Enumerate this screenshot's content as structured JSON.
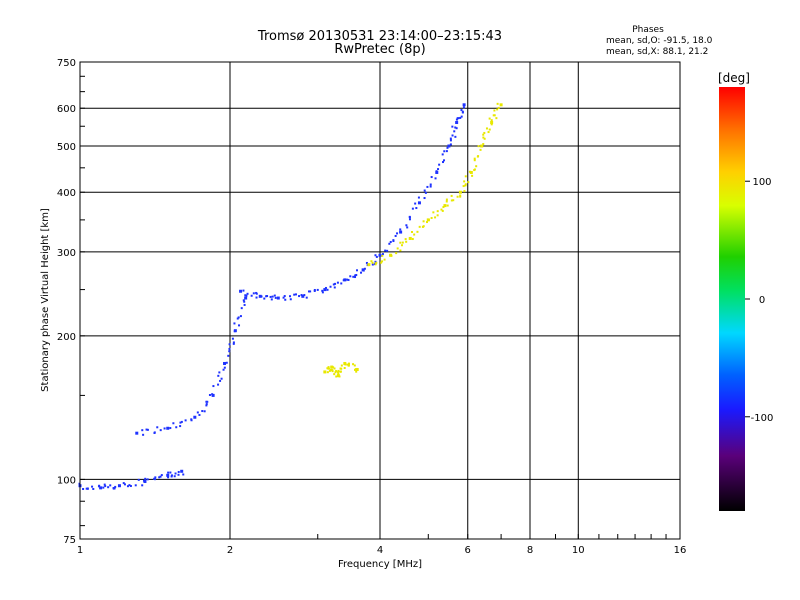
{
  "chart_data": {
    "type": "scatter",
    "title": "Tromsø 20130531 23:14:00–23:15:43",
    "subtitle": "RwPretec (8p)",
    "xlabel": "Frequency [MHz]",
    "ylabel": "Stationary phase Virtual Height [km]",
    "x_scale": "log",
    "y_scale": "log",
    "xlim": [
      1,
      16
    ],
    "ylim": [
      75,
      750
    ],
    "x_ticks": [
      "1",
      "2",
      "4",
      "6",
      "8",
      "10",
      "16"
    ],
    "y_ticks": [
      "75",
      "100",
      "200",
      "300",
      "400",
      "500",
      "600",
      "750"
    ],
    "x_grid": [
      2,
      4,
      6,
      8,
      10
    ],
    "y_grid": [
      100,
      200,
      300,
      400,
      500,
      600
    ],
    "grid": true,
    "stats": {
      "heading": "Phases",
      "o_line": "mean, sd,O: -91.5, 18.0",
      "x_line": "mean, sd,X:  88.1, 21.2"
    },
    "colorbar": {
      "label": "[deg]",
      "range": [
        -180,
        180
      ],
      "ticks": [
        "100",
        "0",
        "-100"
      ],
      "tick_values": [
        100,
        0,
        -100
      ]
    },
    "series": [
      {
        "trace": "F2 O-mode (blue)",
        "phase": -95,
        "points": [
          [
            2.1,
            248
          ],
          [
            2.3,
            242
          ],
          [
            2.5,
            240
          ],
          [
            2.8,
            242
          ],
          [
            3.1,
            250
          ],
          [
            3.4,
            262
          ],
          [
            3.7,
            275
          ],
          [
            4.0,
            295
          ],
          [
            4.4,
            330
          ],
          [
            4.8,
            380
          ],
          [
            5.2,
            440
          ],
          [
            5.5,
            500
          ],
          [
            5.7,
            560
          ],
          [
            5.9,
            610
          ]
        ]
      },
      {
        "trace": "F2 X-mode (yellow)",
        "phase": 90,
        "points": [
          [
            3.8,
            282
          ],
          [
            4.2,
            295
          ],
          [
            4.6,
            320
          ],
          [
            5.0,
            350
          ],
          [
            5.4,
            375
          ],
          [
            5.8,
            400
          ],
          [
            6.1,
            440
          ],
          [
            6.4,
            500
          ],
          [
            6.7,
            560
          ],
          [
            7.0,
            610
          ]
        ]
      },
      {
        "trace": "F1 / lower layer (blue)",
        "phase": -100,
        "points": [
          [
            1.3,
            125
          ],
          [
            1.5,
            128
          ],
          [
            1.7,
            135
          ],
          [
            1.85,
            150
          ],
          [
            1.95,
            175
          ],
          [
            2.05,
            205
          ],
          [
            2.15,
            240
          ]
        ]
      },
      {
        "trace": "E layer (blue)",
        "phase": -100,
        "points": [
          [
            1.0,
            97
          ],
          [
            1.1,
            96
          ],
          [
            1.2,
            97
          ],
          [
            1.35,
            99
          ],
          [
            1.5,
            102
          ],
          [
            1.6,
            104
          ]
        ]
      },
      {
        "trace": "yellow cluster",
        "phase": 110,
        "points": [
          [
            3.1,
            168
          ],
          [
            3.2,
            172
          ],
          [
            3.3,
            165
          ],
          [
            3.4,
            175
          ],
          [
            3.6,
            170
          ]
        ]
      }
    ]
  }
}
